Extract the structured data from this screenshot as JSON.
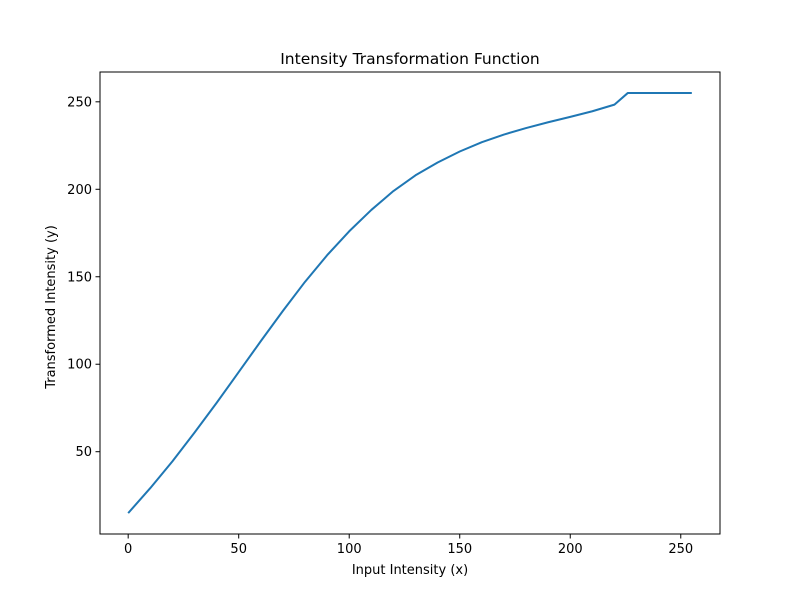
{
  "chart_data": {
    "type": "line",
    "title": "Intensity Transformation Function",
    "xlabel": "Input Intensity (x)",
    "ylabel": "Transformed Intensity (y)",
    "xlim": [
      -12.75,
      267.75
    ],
    "ylim": [
      2.96,
      267.04
    ],
    "xticks": [
      0,
      50,
      100,
      150,
      200,
      250
    ],
    "yticks": [
      50,
      100,
      150,
      200,
      250
    ],
    "grid": false,
    "line_color": "#1f77b4",
    "series": [
      {
        "x": [
          0,
          10,
          20,
          30,
          40,
          50,
          60,
          70,
          80,
          90,
          100,
          110,
          120,
          130,
          140,
          150,
          160,
          170,
          180,
          190,
          200,
          210,
          220,
          226,
          235,
          245,
          255
        ],
        "y": [
          14.9,
          29.2,
          44.5,
          60.9,
          77.9,
          95.5,
          113.2,
          130.5,
          147.1,
          162.3,
          176.0,
          188.2,
          199.0,
          208.0,
          215.3,
          221.6,
          226.9,
          231.3,
          235.0,
          238.3,
          241.4,
          244.6,
          248.4,
          255.0,
          255.0,
          255.0,
          255.0
        ]
      }
    ]
  }
}
